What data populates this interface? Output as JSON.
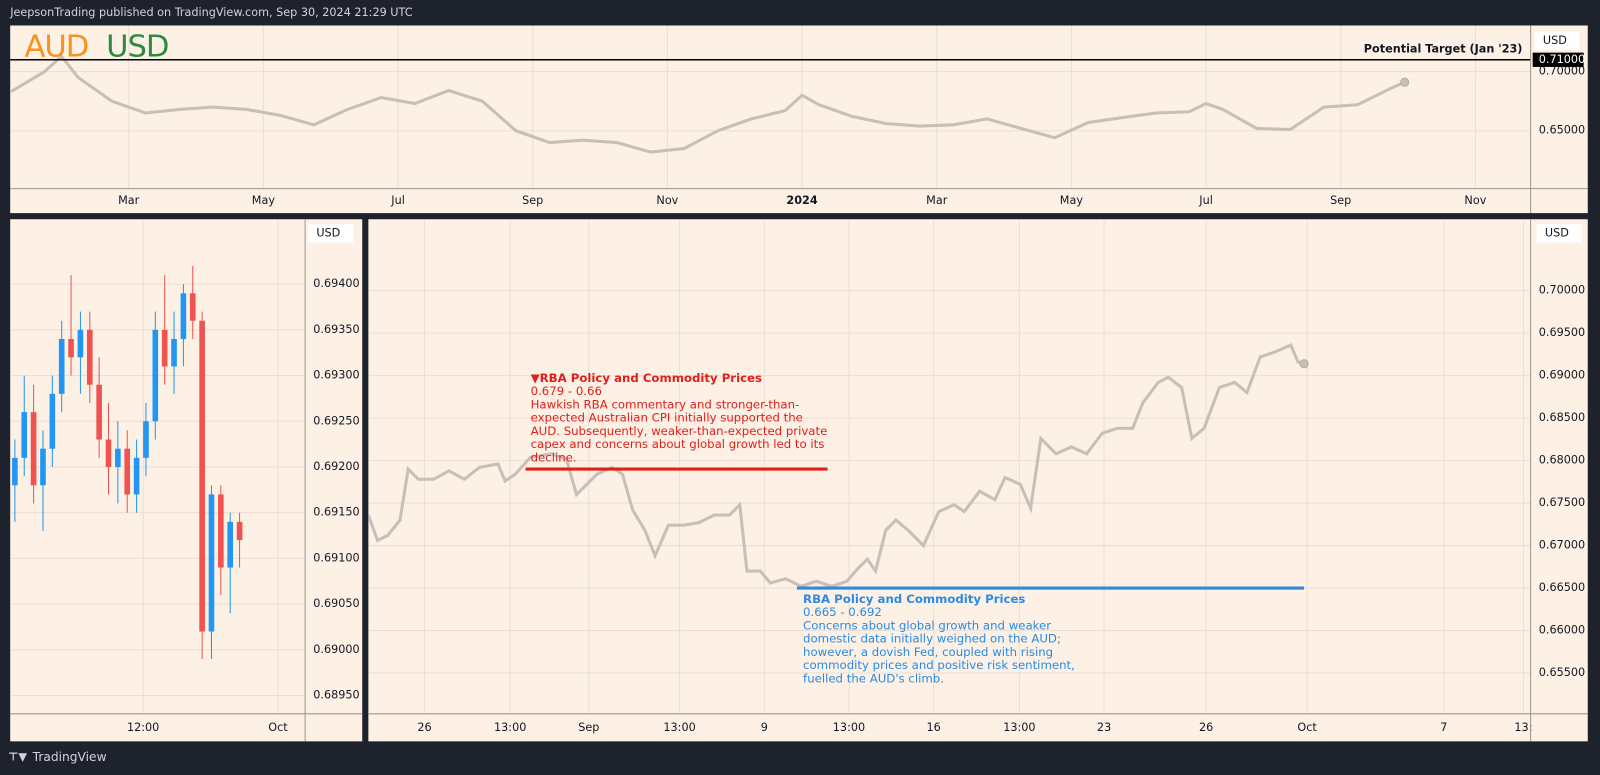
{
  "header": {
    "published": "JeepsonTrading published on TradingView.com, Sep 30, 2024 21:29 UTC",
    "base": "AUD",
    "quote": "USD"
  },
  "footer": {
    "brand": "TradingView"
  },
  "chart_data": [
    {
      "type": "line",
      "y_unit": "USD",
      "color": "#c9bfb8",
      "x": [
        0.25,
        0.75,
        1.0,
        1.25,
        1.75,
        2.25,
        2.75,
        3.25,
        3.75,
        4.25,
        4.75,
        5.25,
        5.75,
        6.25,
        6.75,
        7.25,
        7.75,
        8.25,
        8.75,
        9.25,
        9.75,
        10.25,
        10.75,
        11.25,
        11.75,
        12.0,
        12.25,
        12.75,
        13.25,
        13.75,
        14.25,
        14.75,
        15.25,
        15.75,
        16.25,
        16.75,
        17.25,
        17.75,
        18.0,
        18.25,
        18.75,
        19.25,
        19.75,
        20.25,
        20.75,
        20.95
      ],
      "values": [
        0.683,
        0.7,
        0.713,
        0.695,
        0.675,
        0.665,
        0.668,
        0.67,
        0.668,
        0.663,
        0.655,
        0.668,
        0.678,
        0.673,
        0.684,
        0.675,
        0.65,
        0.64,
        0.642,
        0.64,
        0.632,
        0.635,
        0.65,
        0.66,
        0.667,
        0.68,
        0.672,
        0.662,
        0.656,
        0.654,
        0.655,
        0.66,
        0.652,
        0.644,
        0.657,
        0.661,
        0.665,
        0.666,
        0.673,
        0.668,
        0.652,
        0.651,
        0.67,
        0.672,
        0.686,
        0.691
      ],
      "xlim": [
        0.24,
        22.82
      ],
      "ylim": [
        0.601,
        0.739
      ],
      "xticks": [
        {
          "value": 2,
          "label": "Mar"
        },
        {
          "value": 4,
          "label": "May"
        },
        {
          "value": 6,
          "label": "Jul"
        },
        {
          "value": 8,
          "label": "Sep"
        },
        {
          "value": 10,
          "label": "Nov"
        },
        {
          "value": 12,
          "label": "2024"
        },
        {
          "value": 14,
          "label": "Mar"
        },
        {
          "value": 16,
          "label": "May"
        },
        {
          "value": 18,
          "label": "Jul"
        },
        {
          "value": 20,
          "label": "Sep"
        },
        {
          "value": 22,
          "label": "Nov"
        }
      ],
      "yticks": [
        {
          "value": 0.65,
          "label": "0.65000"
        },
        {
          "value": 0.7,
          "label": "0.70000"
        }
      ],
      "grid": true,
      "target": {
        "text": "Potential Target (Jan '23)",
        "value": 0.71,
        "value_label": "0.71000"
      }
    },
    {
      "type": "candlestick",
      "y_unit": "USD",
      "up_color": "#2196f3",
      "down_color": "#ef5350",
      "x": [
        0,
        1,
        2,
        3,
        4,
        5,
        6,
        7,
        8,
        9,
        10,
        11,
        12,
        13,
        14,
        15,
        16,
        17,
        18,
        19,
        20,
        21,
        22,
        23,
        24
      ],
      "open": [
        0.6918,
        0.6921,
        0.6926,
        0.6918,
        0.6922,
        0.6928,
        0.6934,
        0.6932,
        0.6935,
        0.6929,
        0.6923,
        0.692,
        0.6922,
        0.6917,
        0.6921,
        0.6925,
        0.6935,
        0.6931,
        0.6934,
        0.6939,
        0.6936,
        0.6902,
        0.6917,
        0.6909,
        0.6914
      ],
      "high": [
        0.6923,
        0.693,
        0.6929,
        0.6924,
        0.693,
        0.6936,
        0.6941,
        0.6937,
        0.6937,
        0.6932,
        0.6927,
        0.6925,
        0.6924,
        0.6923,
        0.6927,
        0.6937,
        0.6941,
        0.6937,
        0.694,
        0.6942,
        0.6937,
        0.6918,
        0.6918,
        0.6915,
        0.6915
      ],
      "low": [
        0.6914,
        0.6919,
        0.6916,
        0.6913,
        0.692,
        0.6926,
        0.693,
        0.6928,
        0.6927,
        0.6921,
        0.6917,
        0.6916,
        0.6915,
        0.6915,
        0.6919,
        0.6923,
        0.6929,
        0.6928,
        0.6931,
        0.6934,
        0.6899,
        0.6899,
        0.6906,
        0.6904,
        0.6909
      ],
      "close": [
        0.6921,
        0.6926,
        0.6918,
        0.6922,
        0.6928,
        0.6934,
        0.6932,
        0.6935,
        0.6929,
        0.6923,
        0.692,
        0.6922,
        0.6917,
        0.6921,
        0.6925,
        0.6935,
        0.6931,
        0.6934,
        0.6939,
        0.6936,
        0.6902,
        0.6917,
        0.6909,
        0.6914,
        0.6912
      ],
      "xlim": [
        -0.5,
        31
      ],
      "ylim": [
        0.6893,
        0.69471
      ],
      "xticks": [
        {
          "value": 13.7,
          "label": "12:00"
        },
        {
          "value": 28.1,
          "label": "Oct"
        }
      ],
      "yticks": [
        {
          "value": 0.6895,
          "label": "0.68950"
        },
        {
          "value": 0.69,
          "label": "0.69000"
        },
        {
          "value": 0.6905,
          "label": "0.69050"
        },
        {
          "value": 0.691,
          "label": "0.69100"
        },
        {
          "value": 0.6915,
          "label": "0.69150"
        },
        {
          "value": 0.692,
          "label": "0.69200"
        },
        {
          "value": 0.6925,
          "label": "0.69250"
        },
        {
          "value": 0.693,
          "label": "0.69300"
        },
        {
          "value": 0.6935,
          "label": "0.69350"
        },
        {
          "value": 0.694,
          "label": "0.69400"
        }
      ],
      "grid": true
    },
    {
      "type": "line",
      "y_unit": "USD",
      "color": "#c9bfb8",
      "x": [
        0,
        0.9,
        1.9,
        3.1,
        3.9,
        4.9,
        6.4,
        7.9,
        9.4,
        10.9,
        12.7,
        13.4,
        14.4,
        15.9,
        17.9,
        19.4,
        20.4,
        21.4,
        22.4,
        23.9,
        24.9,
        25.9,
        27.1,
        28.1,
        29.4,
        30.9,
        32.4,
        33.9,
        35.4,
        36.4,
        37.1,
        38.4,
        39.4,
        40.9,
        42.4,
        43.9,
        45.4,
        46.9,
        47.9,
        48.9,
        49.7,
        50.7,
        51.7,
        52.9,
        54.4,
        55.9,
        57.4,
        58.4,
        59.9,
        61.4,
        62.4,
        63.9,
        64.9,
        65.9,
        67.4,
        68.9,
        70.4,
        71.9,
        73.4,
        74.9,
        75.9,
        77.4,
        78.4,
        79.7,
        80.7,
        81.9,
        83.4,
        84.9,
        86.1,
        87.4,
        88.9,
        90.4,
        91.1,
        91.7
      ],
      "values": [
        0.6736,
        0.6706,
        0.6712,
        0.673,
        0.679,
        0.6778,
        0.6778,
        0.6788,
        0.6778,
        0.6792,
        0.6796,
        0.6776,
        0.6784,
        0.6804,
        0.6808,
        0.6802,
        0.676,
        0.6772,
        0.6784,
        0.6792,
        0.6784,
        0.6742,
        0.6718,
        0.6688,
        0.6724,
        0.6724,
        0.6727,
        0.6736,
        0.6736,
        0.6748,
        0.667,
        0.667,
        0.6656,
        0.6661,
        0.6652,
        0.6658,
        0.6652,
        0.6658,
        0.6672,
        0.6684,
        0.667,
        0.6718,
        0.673,
        0.6718,
        0.67,
        0.674,
        0.6748,
        0.674,
        0.6764,
        0.6754,
        0.678,
        0.6772,
        0.6744,
        0.6826,
        0.6808,
        0.6816,
        0.6808,
        0.6832,
        0.6838,
        0.6838,
        0.6868,
        0.6892,
        0.6898,
        0.6886,
        0.6826,
        0.6838,
        0.6886,
        0.6892,
        0.688,
        0.6922,
        0.6928,
        0.6936,
        0.6916,
        0.6914
      ],
      "xlim": [
        0,
        113.9
      ],
      "ylim": [
        0.6502,
        0.7084
      ],
      "xticks": [
        {
          "value": 5.5,
          "label": "26"
        },
        {
          "value": 13.9,
          "label": "13:00"
        },
        {
          "value": 21.6,
          "label": "Sep"
        },
        {
          "value": 30.5,
          "label": "13:00"
        },
        {
          "value": 38.8,
          "label": "9"
        },
        {
          "value": 47.1,
          "label": "13:00"
        },
        {
          "value": 55.4,
          "label": "16"
        },
        {
          "value": 63.8,
          "label": "13:00"
        },
        {
          "value": 72.1,
          "label": "23"
        },
        {
          "value": 82.1,
          "label": "26"
        },
        {
          "value": 92.0,
          "label": "Oct"
        },
        {
          "value": 105.4,
          "label": "7"
        },
        {
          "value": 113.2,
          "label": "13:"
        }
      ],
      "yticks": [
        {
          "value": 0.655,
          "label": "0.65500"
        },
        {
          "value": 0.66,
          "label": "0.66000"
        },
        {
          "value": 0.665,
          "label": "0.66500"
        },
        {
          "value": 0.67,
          "label": "0.67000"
        },
        {
          "value": 0.675,
          "label": "0.67500"
        },
        {
          "value": 0.68,
          "label": "0.68000"
        },
        {
          "value": 0.685,
          "label": "0.68500"
        },
        {
          "value": 0.69,
          "label": "0.69000"
        },
        {
          "value": 0.695,
          "label": "0.69500"
        },
        {
          "value": 0.7,
          "label": "0.70000"
        }
      ],
      "grid": true,
      "annotations": [
        {
          "title": "▼RBA Policy and Commodity Prices",
          "range_label": "0.679 - 0.66",
          "level": 0.679,
          "x_range": [
            15.4,
            45.0
          ],
          "color": "#e0201b",
          "lines": [
            "Hawkish RBA commentary and stronger-than-",
            "expected Australian CPI initially supported the",
            "AUD. Subsequently, weaker-than-expected private",
            "capex and concerns about global growth led to its",
            "decline."
          ]
        },
        {
          "title": "RBA Policy and Commodity Prices",
          "range_label": "0.665 - 0.692",
          "level": 0.665,
          "x_range": [
            42.0,
            91.7
          ],
          "color": "#2b8ae2",
          "lines": [
            "Concerns about global growth and weaker",
            "domestic data initially weighed on the AUD;",
            "however, a dovish Fed, coupled with rising",
            "commodity prices and positive risk sentiment,",
            "fuelled the AUD's climb."
          ]
        }
      ]
    }
  ]
}
